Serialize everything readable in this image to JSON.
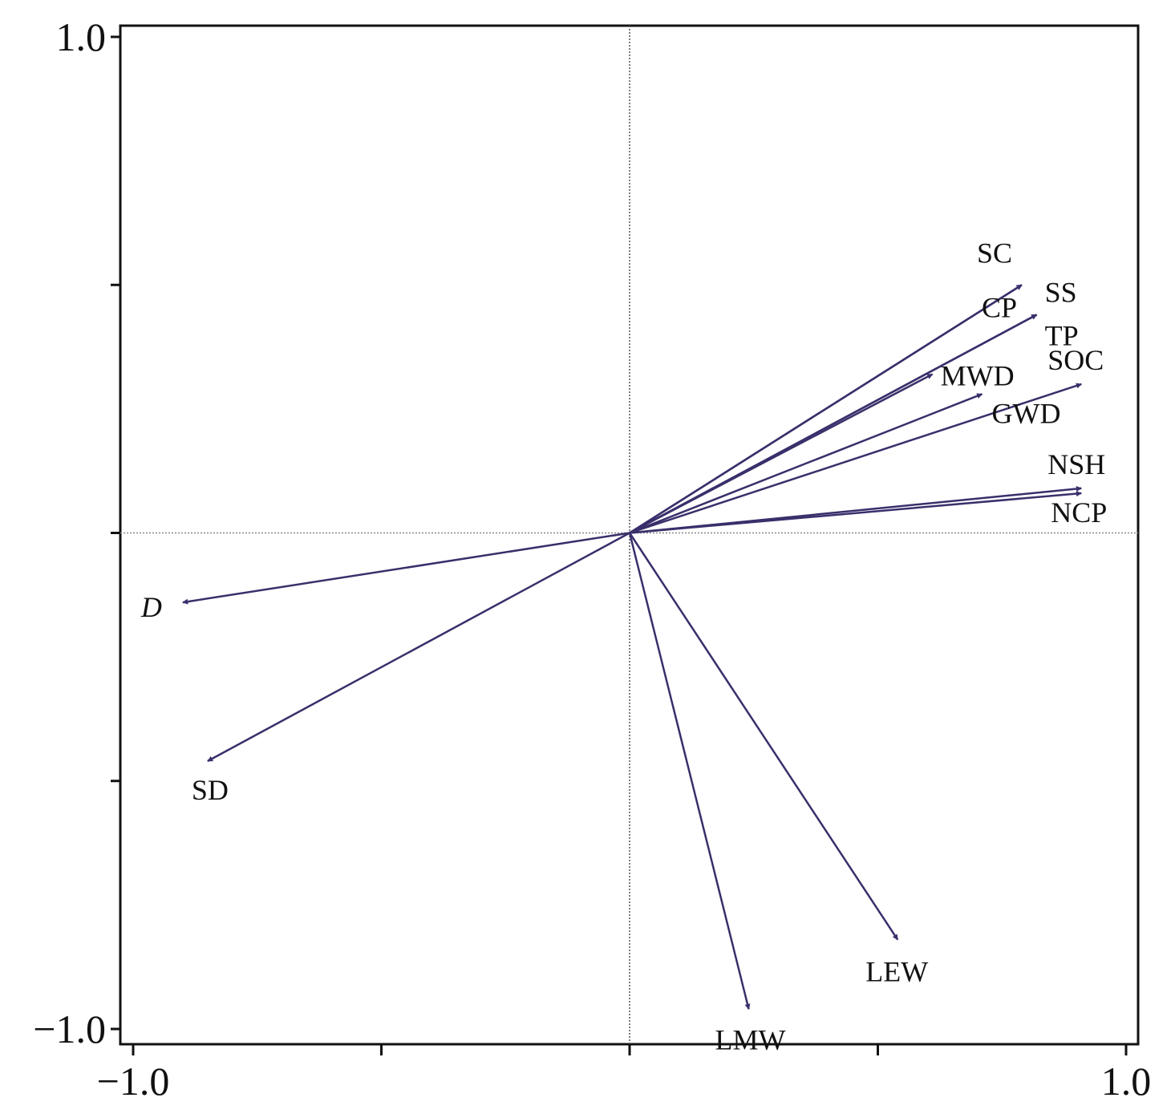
{
  "chart_data": {
    "type": "biplot",
    "xlim": [
      -1.0,
      1.0
    ],
    "ylim": [
      -1.0,
      1.0
    ],
    "x_ticks": [
      {
        "value": -1.0,
        "label": "−1.0"
      },
      {
        "value": -0.5,
        "label": ""
      },
      {
        "value": 0.0,
        "label": ""
      },
      {
        "value": 0.5,
        "label": ""
      },
      {
        "value": 1.0,
        "label": "1.0"
      }
    ],
    "y_ticks": [
      {
        "value": 1.0,
        "label": "1.0"
      },
      {
        "value": 0.5,
        "label": ""
      },
      {
        "value": 0.0,
        "label": ""
      },
      {
        "value": -0.5,
        "label": ""
      },
      {
        "value": -1.0,
        "label": "−1.0"
      }
    ],
    "zero_lines": true,
    "arrow_color": "#3a2f6b",
    "vectors": [
      {
        "name": "SC",
        "x": 0.79,
        "y": 0.5
      },
      {
        "name": "CP",
        "x": 0.79,
        "y": 0.5
      },
      {
        "name": "SS",
        "x": 0.82,
        "y": 0.44
      },
      {
        "name": "TP",
        "x": 0.82,
        "y": 0.44
      },
      {
        "name": "MWD",
        "x": 0.61,
        "y": 0.32
      },
      {
        "name": "GWD",
        "x": 0.71,
        "y": 0.28
      },
      {
        "name": "SOC",
        "x": 0.91,
        "y": 0.3
      },
      {
        "name": "NSH",
        "x": 0.91,
        "y": 0.09
      },
      {
        "name": "NCP",
        "x": 0.91,
        "y": 0.08
      },
      {
        "name": "D",
        "x": -0.9,
        "y": -0.14,
        "italic": true
      },
      {
        "name": "SD",
        "x": -0.85,
        "y": -0.46
      },
      {
        "name": "LEW",
        "x": 0.54,
        "y": -0.82
      },
      {
        "name": "LMW",
        "x": 0.24,
        "y": -0.96
      }
    ]
  }
}
